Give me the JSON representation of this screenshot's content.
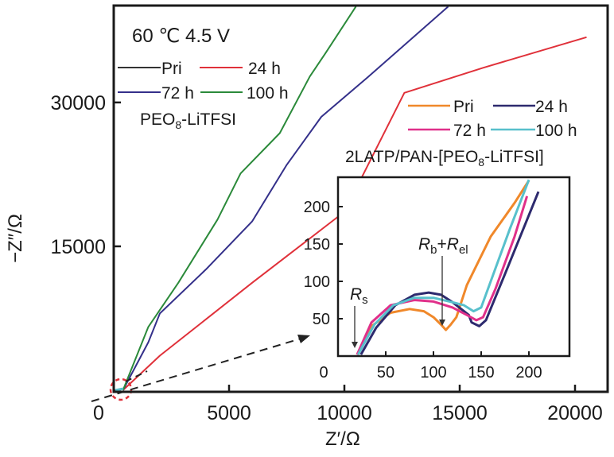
{
  "chart_data": [
    {
      "type": "line",
      "title": "",
      "annotation": "60 ℃  4.5 V",
      "xlabel": "Z′/Ω",
      "ylabel": "−Z″/Ω",
      "xlim": [
        0,
        21000
      ],
      "ylim": [
        0,
        40000
      ],
      "xticks": [
        0,
        5000,
        10000,
        15000,
        20000
      ],
      "xtick_labels": [
        "0",
        "5000",
        "10000",
        "15000",
        "20000"
      ],
      "yticks": [
        15000,
        30000
      ],
      "ytick_labels": [
        "15000",
        "30000"
      ],
      "legend_position": "top-left",
      "legend_caption": "PEO8-LiTFSI",
      "series": [
        {
          "name": "Pri",
          "label": "Pri",
          "color": "#333333",
          "x": [
            0,
            300
          ],
          "y": [
            0,
            0
          ]
        },
        {
          "name": "24 h",
          "label": "24 h",
          "color": "#e0313a",
          "x": [
            400,
            2000,
            4000,
            6000,
            8000,
            10000,
            12600,
            16000,
            20500
          ],
          "y": [
            0,
            3600,
            7400,
            11200,
            14900,
            18600,
            31000,
            33600,
            36800
          ]
        },
        {
          "name": "72 h",
          "label": "72 h",
          "color": "#34308a",
          "x": [
            400,
            1500,
            2000,
            4000,
            6000,
            7500,
            9000,
            11000,
            14500
          ],
          "y": [
            0,
            5000,
            8000,
            12600,
            17600,
            23500,
            28500,
            32600,
            40000
          ]
        },
        {
          "name": "100 h",
          "label": "100 h",
          "color": "#2b8a3a",
          "x": [
            400,
            1500,
            2800,
            4500,
            5500,
            7200,
            8500,
            9200,
            10500
          ],
          "y": [
            0,
            6600,
            11200,
            17800,
            22600,
            26800,
            32700,
            35200,
            40000
          ]
        }
      ]
    },
    {
      "type": "line",
      "title": "",
      "inset": true,
      "xlim": [
        0,
        240
      ],
      "ylim": [
        0,
        240
      ],
      "xticks": [
        0,
        50,
        100,
        150,
        200
      ],
      "xtick_labels": [
        "0",
        "50",
        "100",
        "150",
        "200"
      ],
      "yticks": [
        50,
        100,
        150,
        200
      ],
      "ytick_labels": [
        "50",
        "100",
        "150",
        "200"
      ],
      "legend_position": "top (above inset)",
      "legend_caption": "2LATP/PAN-[PEO8-LiTFSI]",
      "annotations": [
        {
          "text": "Rs",
          "x": 20,
          "y": 10
        },
        {
          "text": "Rb+Rel",
          "x": 108,
          "y": 40
        }
      ],
      "series": [
        {
          "name": "Pri",
          "label": "Pri",
          "color": "#f0882a",
          "x": [
            20,
            35,
            55,
            75,
            90,
            100,
            108,
            113,
            118,
            124,
            135,
            160,
            185,
            200
          ],
          "y": [
            2,
            40,
            58,
            63,
            60,
            52,
            42,
            35,
            42,
            52,
            95,
            160,
            205,
            235
          ]
        },
        {
          "name": "24 h",
          "label": "24 h",
          "color": "#2d2a6e",
          "x": [
            24,
            40,
            60,
            80,
            95,
            108,
            120,
            130,
            137,
            140,
            148,
            155,
            175,
            210
          ],
          "y": [
            2,
            38,
            68,
            82,
            85,
            82,
            72,
            62,
            55,
            45,
            40,
            48,
            110,
            220
          ]
        },
        {
          "name": "72 h",
          "label": "72 h",
          "color": "#e0308a",
          "x": [
            20,
            35,
            55,
            80,
            100,
            120,
            135,
            145,
            152,
            165,
            185,
            198
          ],
          "y": [
            2,
            45,
            68,
            75,
            73,
            65,
            55,
            48,
            52,
            90,
            160,
            214
          ]
        },
        {
          "name": "100 h",
          "label": "100 h",
          "color": "#58c0cc",
          "x": [
            21,
            38,
            58,
            80,
            100,
            120,
            132,
            142,
            150,
            160,
            180,
            200
          ],
          "y": [
            2,
            42,
            68,
            78,
            78,
            72,
            68,
            60,
            65,
            100,
            170,
            236
          ]
        }
      ]
    }
  ],
  "labels": {
    "condition": "60 ℃  4.5 V",
    "xaxis": "Z′/Ω",
    "yaxis": "−Z″/Ω",
    "peo_caption_main": "PEO",
    "peo_caption_sub": "8",
    "peo_caption_rest": "-LiTFSI",
    "latp_caption_pre": "2LATP/PAN-[PEO",
    "latp_caption_sub": "8",
    "latp_caption_post": "-LiTFSI]",
    "rs_main": "R",
    "rs_sub": "s",
    "rb_main": "R",
    "rb_sub": "b",
    "plus": "+",
    "rel_main": "R",
    "rel_sub": "el"
  }
}
